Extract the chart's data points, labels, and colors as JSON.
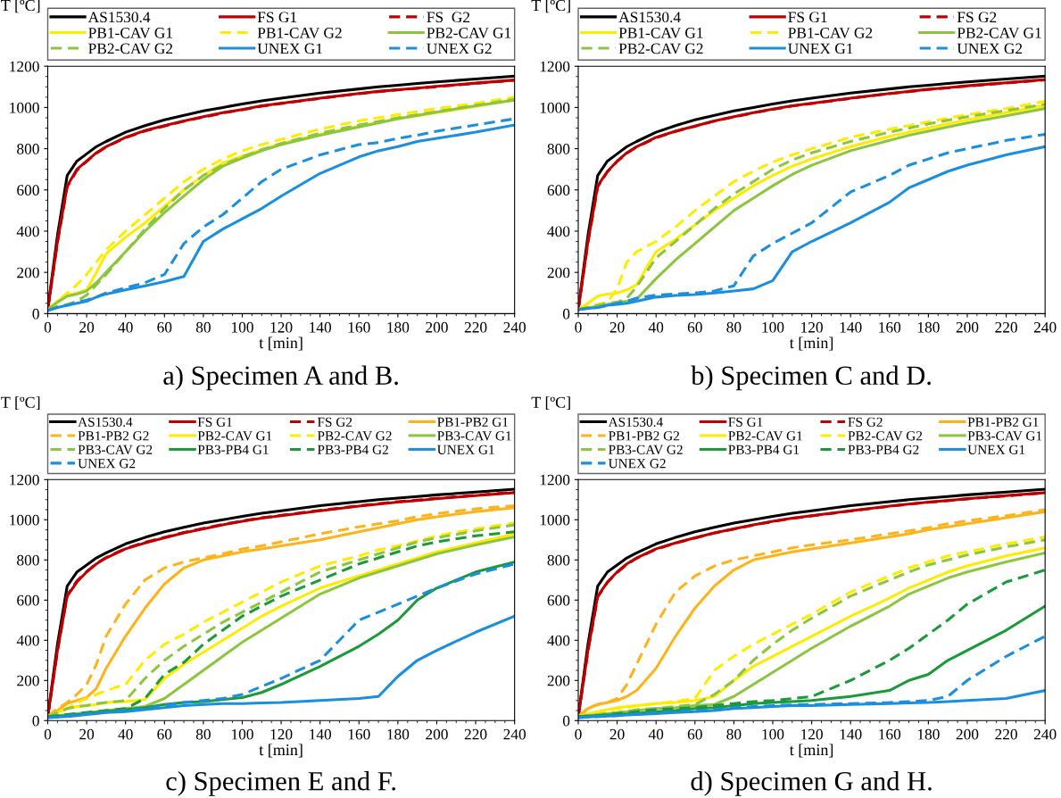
{
  "chart_data": [
    {
      "type": "line",
      "title": "a) Specimen A and B.",
      "xlabel": "t [min]",
      "ylabel": "T [ºC]",
      "legend": "top",
      "x": [
        0,
        5,
        10,
        15,
        20,
        25,
        30,
        40,
        50,
        60,
        70,
        80,
        90,
        100,
        110,
        120,
        140,
        160,
        170,
        180,
        190,
        200,
        220,
        240
      ],
      "xlim": [
        0,
        240
      ],
      "xticks": [
        0,
        20,
        40,
        60,
        80,
        100,
        120,
        140,
        160,
        180,
        200,
        220,
        240
      ],
      "ylim": [
        0,
        1200
      ],
      "yticks": [
        0,
        200,
        400,
        600,
        800,
        1000,
        1200
      ],
      "series": [
        {
          "name": "AS1530.4",
          "color": "#000000",
          "line_style": "solid",
          "values": [
            20,
            380,
            670,
            740,
            775,
            810,
            835,
            880,
            912,
            940,
            962,
            983,
            1000,
            1017,
            1032,
            1045,
            1070,
            1090,
            1100,
            1108,
            1116,
            1124,
            1138,
            1152
          ]
        },
        {
          "name": "FS G1",
          "color": "#c00000",
          "line_style": "solid",
          "values": [
            20,
            350,
            620,
            700,
            740,
            780,
            810,
            855,
            888,
            912,
            935,
            955,
            975,
            990,
            1008,
            1020,
            1045,
            1068,
            1078,
            1086,
            1094,
            1102,
            1118,
            1133
          ]
        },
        {
          "name": "FS  G2",
          "color": "#c00000",
          "line_style": "dashed",
          "values": [
            20,
            345,
            615,
            695,
            738,
            778,
            808,
            853,
            886,
            910,
            933,
            953,
            973,
            989,
            1006,
            1019,
            1044,
            1067,
            1077,
            1085,
            1093,
            1101,
            1117,
            1132
          ]
        },
        {
          "name": "PB1-CAV G1",
          "color": "#ffeb00",
          "line_style": "solid",
          "values": [
            20,
            60,
            90,
            100,
            115,
            200,
            290,
            370,
            440,
            520,
            600,
            670,
            730,
            765,
            795,
            825,
            870,
            910,
            928,
            945,
            960,
            975,
            1005,
            1040
          ]
        },
        {
          "name": "PB1-CAV G2",
          "color": "#ffeb00",
          "line_style": "dashed",
          "values": [
            20,
            60,
            100,
            140,
            190,
            250,
            310,
            400,
            480,
            560,
            640,
            700,
            750,
            790,
            820,
            845,
            895,
            935,
            950,
            965,
            980,
            995,
            1020,
            1050
          ]
        },
        {
          "name": "PB2-CAV G1",
          "color": "#8cc63f",
          "line_style": "solid",
          "values": [
            20,
            55,
            85,
            95,
            110,
            150,
            200,
            300,
            400,
            490,
            570,
            650,
            715,
            755,
            790,
            820,
            865,
            905,
            925,
            945,
            962,
            978,
            1008,
            1035
          ]
        },
        {
          "name": "PB2-CAV G2",
          "color": "#8cc63f",
          "line_style": "dashed",
          "values": [
            20,
            35,
            45,
            60,
            90,
            140,
            190,
            300,
            410,
            510,
            600,
            670,
            720,
            760,
            795,
            825,
            875,
            915,
            932,
            950,
            965,
            980,
            1010,
            1040
          ]
        },
        {
          "name": "UNEX G1",
          "color": "#1a8fe0",
          "line_style": "solid",
          "values": [
            15,
            30,
            40,
            50,
            60,
            80,
            95,
            115,
            135,
            155,
            180,
            350,
            410,
            460,
            510,
            570,
            680,
            760,
            790,
            810,
            835,
            850,
            880,
            915
          ]
        },
        {
          "name": "UNEX G2",
          "color": "#1a8fe0",
          "line_style": "dashed",
          "values": [
            15,
            30,
            40,
            55,
            65,
            80,
            100,
            125,
            150,
            190,
            340,
            420,
            480,
            560,
            640,
            700,
            770,
            820,
            830,
            850,
            865,
            885,
            915,
            945
          ]
        }
      ]
    },
    {
      "type": "line",
      "title": "b) Specimen C and D.",
      "xlabel": "t [min]",
      "ylabel": "T [ºC]",
      "legend": "top",
      "x": [
        0,
        5,
        10,
        15,
        20,
        25,
        30,
        40,
        50,
        60,
        70,
        80,
        90,
        100,
        110,
        120,
        140,
        160,
        170,
        180,
        190,
        200,
        220,
        240
      ],
      "xlim": [
        0,
        240
      ],
      "xticks": [
        0,
        20,
        40,
        60,
        80,
        100,
        120,
        140,
        160,
        180,
        200,
        220,
        240
      ],
      "ylim": [
        0,
        1200
      ],
      "yticks": [
        0,
        200,
        400,
        600,
        800,
        1000,
        1200
      ],
      "series": [
        {
          "name": "AS1530.4",
          "color": "#000000",
          "line_style": "solid",
          "values": [
            20,
            380,
            670,
            740,
            775,
            810,
            835,
            880,
            912,
            940,
            962,
            983,
            1000,
            1017,
            1032,
            1045,
            1070,
            1090,
            1100,
            1108,
            1116,
            1124,
            1138,
            1152
          ]
        },
        {
          "name": "FS G1",
          "color": "#c00000",
          "line_style": "solid",
          "values": [
            20,
            350,
            620,
            690,
            740,
            780,
            810,
            855,
            885,
            910,
            935,
            955,
            975,
            992,
            1008,
            1020,
            1045,
            1068,
            1078,
            1088,
            1096,
            1105,
            1120,
            1135
          ]
        },
        {
          "name": "FS G2",
          "color": "#c00000",
          "line_style": "dashed",
          "values": [
            20,
            345,
            615,
            688,
            738,
            778,
            808,
            853,
            884,
            909,
            934,
            954,
            974,
            991,
            1007,
            1019,
            1044,
            1067,
            1077,
            1087,
            1095,
            1104,
            1119,
            1134
          ]
        },
        {
          "name": "PB1-CAV G1",
          "color": "#ffeb00",
          "line_style": "solid",
          "values": [
            20,
            50,
            85,
            95,
            100,
            115,
            140,
            300,
            360,
            430,
            500,
            560,
            620,
            670,
            715,
            750,
            810,
            860,
            880,
            900,
            920,
            940,
            975,
            1010
          ]
        },
        {
          "name": "PB1-CAV G2",
          "color": "#ffeb00",
          "line_style": "dashed",
          "values": [
            20,
            35,
            45,
            55,
            120,
            250,
            300,
            350,
            420,
            500,
            570,
            640,
            690,
            735,
            770,
            800,
            855,
            895,
            912,
            930,
            948,
            965,
            995,
            1030
          ]
        },
        {
          "name": "PB2-CAV G1",
          "color": "#8cc63f",
          "line_style": "solid",
          "values": [
            20,
            28,
            35,
            45,
            55,
            60,
            70,
            170,
            260,
            340,
            420,
            500,
            560,
            620,
            675,
            720,
            790,
            840,
            865,
            885,
            905,
            925,
            960,
            995
          ]
        },
        {
          "name": "PB2-CAV G2",
          "color": "#8cc63f",
          "line_style": "dashed",
          "values": [
            20,
            30,
            40,
            50,
            55,
            75,
            130,
            270,
            350,
            430,
            510,
            580,
            640,
            700,
            745,
            780,
            835,
            880,
            900,
            920,
            938,
            955,
            985,
            1015
          ]
        },
        {
          "name": "UNEX G1",
          "color": "#1a8fe0",
          "line_style": "solid",
          "values": [
            20,
            25,
            30,
            40,
            45,
            50,
            60,
            80,
            88,
            92,
            100,
            110,
            120,
            160,
            300,
            350,
            440,
            540,
            610,
            650,
            690,
            720,
            770,
            810
          ]
        },
        {
          "name": "UNEX G2",
          "color": "#1a8fe0",
          "line_style": "dashed",
          "values": [
            20,
            25,
            30,
            40,
            50,
            60,
            75,
            90,
            95,
            100,
            110,
            135,
            280,
            340,
            390,
            440,
            590,
            670,
            720,
            750,
            780,
            800,
            840,
            870
          ]
        }
      ]
    },
    {
      "type": "line",
      "title": "c) Specimen E and F.",
      "xlabel": "t [min]",
      "ylabel": "T [ºC]",
      "legend": "top",
      "x": [
        0,
        5,
        10,
        15,
        20,
        25,
        30,
        40,
        50,
        60,
        70,
        80,
        90,
        100,
        110,
        120,
        140,
        160,
        170,
        180,
        190,
        200,
        220,
        240
      ],
      "xlim": [
        0,
        240
      ],
      "xticks": [
        0,
        20,
        40,
        60,
        80,
        100,
        120,
        140,
        160,
        180,
        200,
        220,
        240
      ],
      "ylim": [
        0,
        1200
      ],
      "yticks": [
        0,
        200,
        400,
        600,
        800,
        1000,
        1200
      ],
      "series": [
        {
          "name": "AS1530.4",
          "color": "#000000",
          "line_style": "solid",
          "values": [
            20,
            380,
            670,
            740,
            775,
            810,
            835,
            880,
            912,
            940,
            962,
            983,
            1000,
            1017,
            1032,
            1045,
            1070,
            1090,
            1100,
            1108,
            1116,
            1124,
            1138,
            1152
          ]
        },
        {
          "name": "FS G1",
          "color": "#c00000",
          "line_style": "solid",
          "values": [
            20,
            350,
            620,
            690,
            740,
            780,
            810,
            855,
            885,
            910,
            935,
            955,
            975,
            992,
            1008,
            1020,
            1045,
            1068,
            1078,
            1088,
            1096,
            1105,
            1120,
            1135
          ]
        },
        {
          "name": "FS G2",
          "color": "#c00000",
          "line_style": "dashed",
          "values": [
            20,
            345,
            625,
            695,
            742,
            782,
            812,
            857,
            888,
            912,
            937,
            957,
            977,
            994,
            1010,
            1022,
            1047,
            1070,
            1080,
            1090,
            1098,
            1107,
            1122,
            1137
          ]
        },
        {
          "name": "PB1-PB2 G1",
          "color": "#ffb31a",
          "line_style": "solid",
          "values": [
            20,
            50,
            85,
            100,
            115,
            160,
            260,
            420,
            560,
            680,
            760,
            800,
            820,
            840,
            855,
            870,
            900,
            940,
            960,
            980,
            1000,
            1015,
            1040,
            1060
          ]
        },
        {
          "name": "PB1-PB2 G2",
          "color": "#ffb31a",
          "line_style": "dashed",
          "values": [
            20,
            60,
            90,
            130,
            180,
            280,
            420,
            580,
            700,
            760,
            790,
            810,
            830,
            855,
            870,
            890,
            930,
            965,
            980,
            995,
            1015,
            1030,
            1055,
            1070
          ]
        },
        {
          "name": "PB2-CAV G1",
          "color": "#ffeb00",
          "line_style": "solid",
          "values": [
            20,
            40,
            60,
            70,
            75,
            80,
            90,
            95,
            105,
            210,
            280,
            340,
            400,
            460,
            520,
            570,
            660,
            720,
            750,
            780,
            810,
            840,
            885,
            930
          ]
        },
        {
          "name": "PB2-CAV G2",
          "color": "#ffeb00",
          "line_style": "dashed",
          "values": [
            20,
            40,
            60,
            90,
            110,
            130,
            150,
            180,
            300,
            380,
            430,
            490,
            540,
            590,
            640,
            690,
            770,
            820,
            850,
            870,
            895,
            920,
            955,
            985
          ]
        },
        {
          "name": "PB3-CAV G1",
          "color": "#8cc63f",
          "line_style": "solid",
          "values": [
            20,
            25,
            30,
            35,
            40,
            45,
            50,
            60,
            70,
            110,
            180,
            250,
            320,
            390,
            450,
            510,
            630,
            710,
            740,
            770,
            800,
            830,
            875,
            915
          ]
        },
        {
          "name": "PB3-CAV G2",
          "color": "#8cc63f",
          "line_style": "dashed",
          "values": [
            20,
            40,
            60,
            70,
            75,
            85,
            90,
            100,
            210,
            300,
            370,
            430,
            490,
            540,
            590,
            640,
            740,
            800,
            830,
            860,
            890,
            910,
            945,
            975
          ]
        },
        {
          "name": "PB3-PB4 G1",
          "color": "#1a9a3a",
          "line_style": "solid",
          "values": [
            20,
            22,
            25,
            30,
            35,
            40,
            45,
            55,
            65,
            80,
            90,
            95,
            105,
            115,
            140,
            180,
            270,
            370,
            430,
            500,
            600,
            660,
            740,
            790
          ]
        },
        {
          "name": "PB3-PB4 G2",
          "color": "#1a9a3a",
          "line_style": "dashed",
          "values": [
            20,
            25,
            30,
            35,
            40,
            45,
            50,
            60,
            110,
            230,
            290,
            380,
            450,
            520,
            570,
            620,
            700,
            780,
            810,
            840,
            870,
            890,
            920,
            940
          ]
        },
        {
          "name": "UNEX G1",
          "color": "#1a8fe0",
          "line_style": "solid",
          "values": [
            15,
            18,
            20,
            25,
            30,
            35,
            40,
            45,
            55,
            65,
            75,
            80,
            85,
            85,
            88,
            90,
            100,
            110,
            120,
            220,
            300,
            350,
            440,
            520
          ]
        },
        {
          "name": "UNEX G2",
          "color": "#1a8fe0",
          "line_style": "dashed",
          "values": [
            15,
            18,
            22,
            28,
            32,
            38,
            42,
            50,
            60,
            75,
            90,
            100,
            110,
            130,
            170,
            210,
            300,
            500,
            540,
            580,
            620,
            660,
            730,
            780
          ]
        }
      ]
    },
    {
      "type": "line",
      "title": "d) Specimen G and H.",
      "xlabel": "t [min]",
      "ylabel": "T [ºC]",
      "legend": "top",
      "x": [
        0,
        5,
        10,
        15,
        20,
        25,
        30,
        40,
        50,
        60,
        70,
        80,
        90,
        100,
        110,
        120,
        140,
        160,
        170,
        180,
        190,
        200,
        220,
        240
      ],
      "xlim": [
        0,
        240
      ],
      "xticks": [
        0,
        20,
        40,
        60,
        80,
        100,
        120,
        140,
        160,
        180,
        200,
        220,
        240
      ],
      "ylim": [
        0,
        1200
      ],
      "yticks": [
        0,
        200,
        400,
        600,
        800,
        1000,
        1200
      ],
      "series": [
        {
          "name": "AS1530.4",
          "color": "#000000",
          "line_style": "solid",
          "values": [
            20,
            380,
            670,
            740,
            775,
            810,
            835,
            880,
            912,
            940,
            962,
            983,
            1000,
            1017,
            1032,
            1045,
            1070,
            1090,
            1100,
            1108,
            1116,
            1124,
            1138,
            1152
          ]
        },
        {
          "name": "FS G1",
          "color": "#c00000",
          "line_style": "solid",
          "values": [
            20,
            350,
            620,
            690,
            740,
            780,
            810,
            855,
            885,
            910,
            935,
            955,
            975,
            992,
            1008,
            1020,
            1045,
            1068,
            1078,
            1088,
            1096,
            1105,
            1120,
            1135
          ]
        },
        {
          "name": "FS G2",
          "color": "#c00000",
          "line_style": "dashed",
          "values": [
            20,
            345,
            615,
            688,
            738,
            778,
            808,
            853,
            884,
            909,
            934,
            954,
            974,
            991,
            1007,
            1019,
            1044,
            1067,
            1077,
            1087,
            1095,
            1104,
            1119,
            1134
          ]
        },
        {
          "name": "PB1-PB2 G1",
          "color": "#ffb31a",
          "line_style": "solid",
          "values": [
            20,
            60,
            80,
            90,
            100,
            120,
            150,
            260,
            420,
            560,
            670,
            750,
            800,
            820,
            840,
            855,
            885,
            915,
            930,
            950,
            965,
            980,
            1010,
            1040
          ]
        },
        {
          "name": "PB1-PB2 G2",
          "color": "#ffb31a",
          "line_style": "dashed",
          "values": [
            20,
            60,
            80,
            90,
            110,
            180,
            280,
            480,
            640,
            720,
            770,
            800,
            820,
            840,
            860,
            875,
            900,
            930,
            945,
            960,
            980,
            995,
            1020,
            1050
          ]
        },
        {
          "name": "PB2-CAV G1",
          "color": "#ffeb00",
          "line_style": "solid",
          "values": [
            20,
            35,
            45,
            55,
            65,
            70,
            75,
            85,
            90,
            100,
            120,
            200,
            270,
            320,
            370,
            420,
            520,
            610,
            660,
            700,
            740,
            770,
            820,
            860
          ]
        },
        {
          "name": "PB2-CAV G2",
          "color": "#ffeb00",
          "line_style": "dashed",
          "values": [
            20,
            30,
            40,
            50,
            60,
            65,
            75,
            85,
            95,
            110,
            250,
            320,
            380,
            430,
            480,
            530,
            640,
            720,
            760,
            790,
            820,
            840,
            880,
            915
          ]
        },
        {
          "name": "PB3-CAV G1",
          "color": "#8cc63f",
          "line_style": "solid",
          "values": [
            20,
            25,
            30,
            35,
            40,
            45,
            50,
            60,
            65,
            75,
            80,
            120,
            180,
            240,
            300,
            360,
            470,
            570,
            630,
            670,
            710,
            740,
            790,
            835
          ]
        },
        {
          "name": "PB3-CAV G2",
          "color": "#8cc63f",
          "line_style": "dashed",
          "values": [
            20,
            25,
            30,
            35,
            40,
            45,
            55,
            60,
            70,
            80,
            130,
            200,
            300,
            380,
            450,
            510,
            620,
            700,
            740,
            775,
            800,
            825,
            865,
            900
          ]
        },
        {
          "name": "PB3-PB4 G1",
          "color": "#1a9a3a",
          "line_style": "solid",
          "values": [
            20,
            22,
            25,
            28,
            30,
            33,
            36,
            45,
            50,
            60,
            65,
            75,
            85,
            90,
            95,
            100,
            120,
            150,
            200,
            230,
            300,
            350,
            450,
            570
          ]
        },
        {
          "name": "PB3-PB4 G2",
          "color": "#1a9a3a",
          "line_style": "dashed",
          "values": [
            20,
            22,
            25,
            30,
            35,
            40,
            45,
            55,
            60,
            65,
            75,
            85,
            95,
            100,
            110,
            120,
            200,
            300,
            360,
            430,
            500,
            580,
            690,
            750
          ]
        },
        {
          "name": "UNEX G1",
          "color": "#1a8fe0",
          "line_style": "solid",
          "values": [
            15,
            18,
            20,
            22,
            25,
            28,
            30,
            35,
            40,
            45,
            50,
            60,
            65,
            70,
            75,
            75,
            80,
            85,
            88,
            90,
            95,
            100,
            110,
            150
          ]
        },
        {
          "name": "UNEX G2",
          "color": "#1a8fe0",
          "line_style": "dashed",
          "values": [
            15,
            18,
            20,
            22,
            25,
            28,
            32,
            40,
            45,
            50,
            55,
            65,
            70,
            75,
            78,
            80,
            85,
            90,
            95,
            100,
            120,
            200,
            320,
            420
          ]
        }
      ]
    }
  ]
}
